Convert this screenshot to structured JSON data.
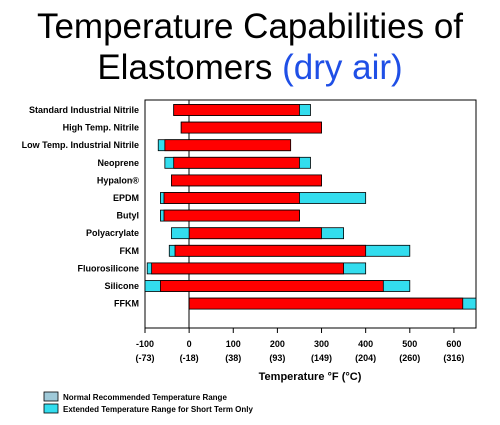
{
  "title": {
    "line1": "Temperature Capabilities of",
    "line2_main": "Elastomers ",
    "line2_accent": "(dry air)"
  },
  "colors": {
    "normal": "#ff0000",
    "extended": "#33ddee",
    "title_accent": "#1f4fe6",
    "legend_normal_swatch": "#9fc9d8"
  },
  "chart_data": {
    "type": "bar",
    "orientation": "horizontal-range",
    "xlabel": "Temperature °F (°C)",
    "xlim": [
      -100,
      650
    ],
    "xticks": [
      {
        "value": -100,
        "f": "-100",
        "c": "(-73)"
      },
      {
        "value": 0,
        "f": "0",
        "c": "(-18)"
      },
      {
        "value": 100,
        "f": "100",
        "c": "(38)"
      },
      {
        "value": 200,
        "f": "200",
        "c": "(93)"
      },
      {
        "value": 300,
        "f": "300",
        "c": "(149)"
      },
      {
        "value": 400,
        "f": "400",
        "c": "(204)"
      },
      {
        "value": 500,
        "f": "500",
        "c": "(260)"
      },
      {
        "value": 600,
        "f": "600",
        "c": "(316)"
      }
    ],
    "categories": [
      "Standard Industrial Nitrile",
      "High Temp. Nitrile",
      "Low Temp. Industrial Nitrile",
      "Neoprene",
      "Hypalon®",
      "EPDM",
      "Butyl",
      "Polyacrylate",
      "FKM",
      "Fluorosilicone",
      "Silicone",
      "FFKM"
    ],
    "normal_range": [
      [
        -35,
        250
      ],
      [
        -18,
        300
      ],
      [
        -55,
        230
      ],
      [
        -35,
        250
      ],
      [
        -40,
        300
      ],
      [
        -57,
        250
      ],
      [
        -57,
        250
      ],
      [
        0,
        300
      ],
      [
        -32,
        400
      ],
      [
        -85,
        350
      ],
      [
        -65,
        440
      ],
      [
        0,
        620
      ]
    ],
    "extended_range": [
      [
        -35,
        275
      ],
      [
        -18,
        300
      ],
      [
        -70,
        230
      ],
      [
        -55,
        275
      ],
      [
        -40,
        300
      ],
      [
        -65,
        400
      ],
      [
        -65,
        250
      ],
      [
        -40,
        350
      ],
      [
        -45,
        500
      ],
      [
        -95,
        400
      ],
      [
        -100,
        500
      ],
      [
        0,
        650
      ]
    ],
    "legend": [
      "Normal Recommended Temperature Range",
      "Extended Temperature Range for Short Term Only"
    ]
  }
}
